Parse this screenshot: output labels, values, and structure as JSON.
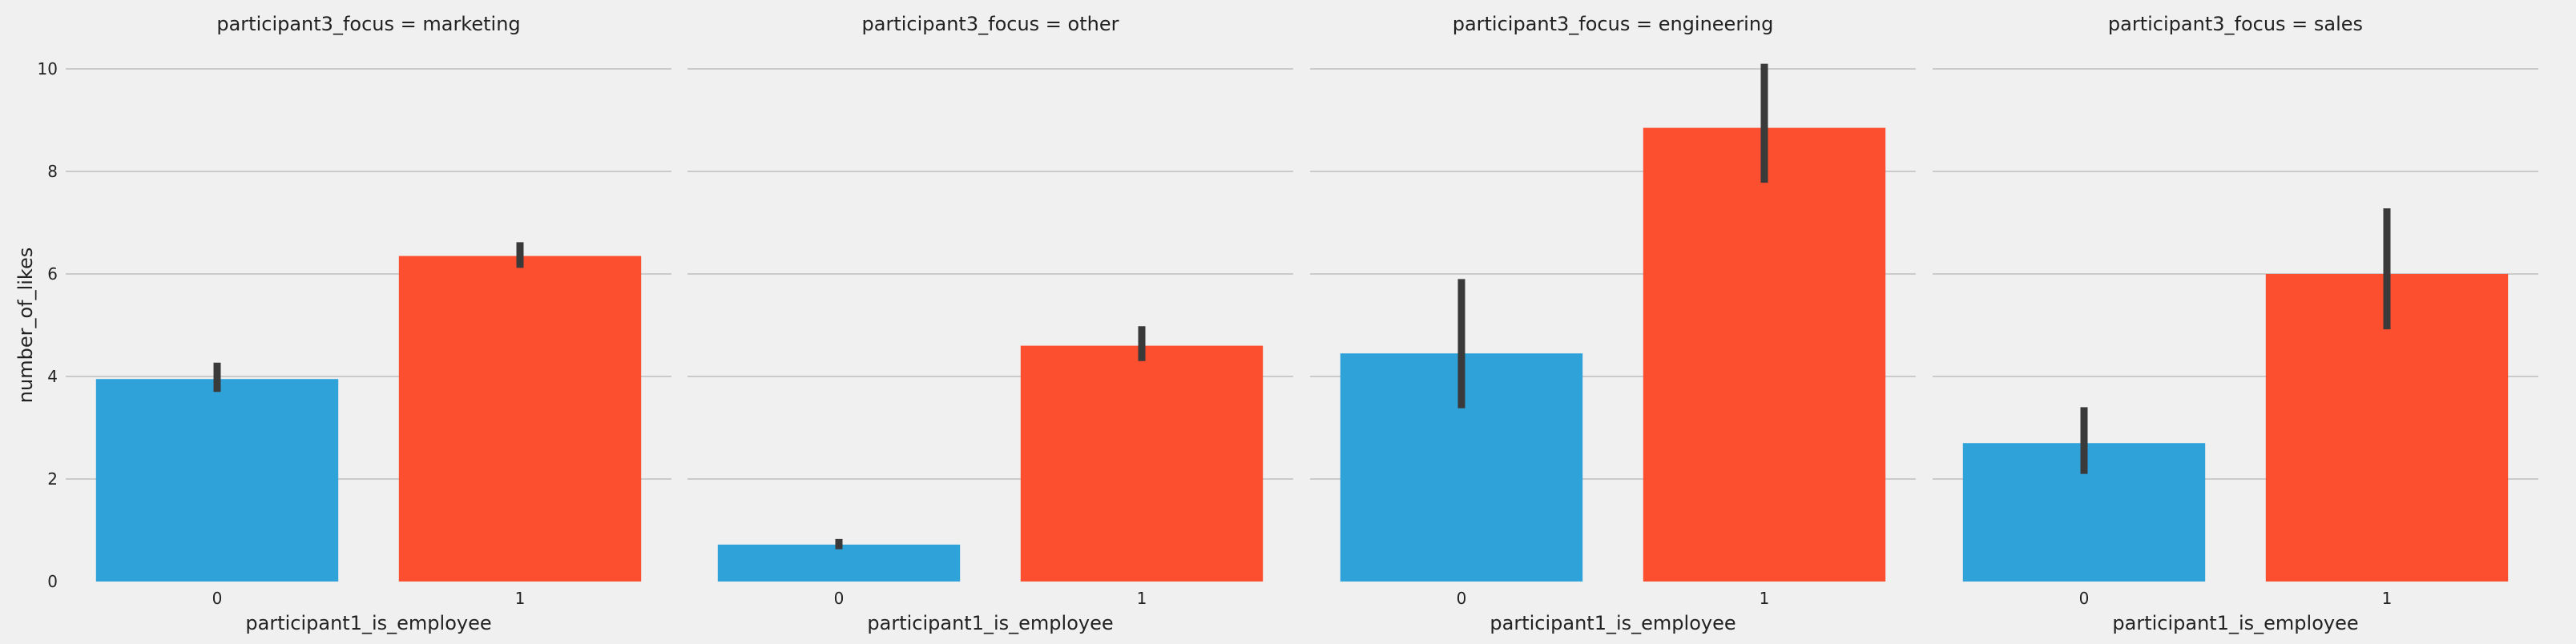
{
  "colors": {
    "background": "#f0f0f0",
    "grid": "#cbcbcb",
    "errorbar": "#3a3a3a",
    "category_0": "#30a2da",
    "category_1": "#fc4f30"
  },
  "chart_data": {
    "type": "bar",
    "layout": "facet-grid-1x4",
    "shared_y_axis": true,
    "ylabel": "number_of_likes",
    "xlabel": "participant1_is_employee",
    "ylim": [
      0,
      10
    ],
    "yticks": [
      0,
      2,
      4,
      6,
      8,
      10
    ],
    "grid": "horizontal",
    "categories": [
      "0",
      "1"
    ],
    "panels": [
      {
        "title": "participant3_focus = marketing",
        "values": [
          3.95,
          6.35
        ],
        "ci_low": [
          3.7,
          6.12
        ],
        "ci_high": [
          4.27,
          6.62
        ]
      },
      {
        "title": "participant3_focus = other",
        "values": [
          0.72,
          4.6
        ],
        "ci_low": [
          0.63,
          4.3
        ],
        "ci_high": [
          0.83,
          4.98
        ]
      },
      {
        "title": "participant3_focus = engineering",
        "values": [
          4.45,
          8.85
        ],
        "ci_low": [
          3.38,
          7.78
        ],
        "ci_high": [
          5.9,
          10.1
        ]
      },
      {
        "title": "participant3_focus = sales",
        "values": [
          2.7,
          6.0
        ],
        "ci_low": [
          2.1,
          4.92
        ],
        "ci_high": [
          3.4,
          7.28
        ]
      }
    ]
  }
}
